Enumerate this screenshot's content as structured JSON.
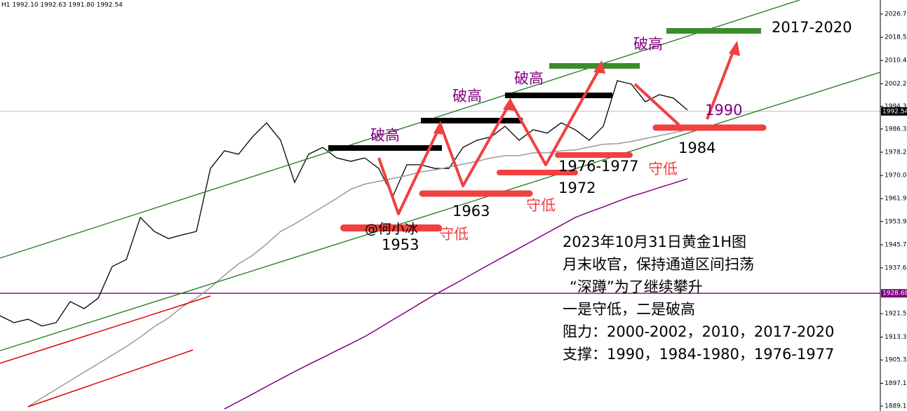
{
  "chart_data": {
    "type": "line",
    "header": "H1  1992.10 1992.63 1991.80 1992.54",
    "categories": [
      null,
      null,
      null,
      null,
      null,
      null,
      null,
      null,
      null,
      null,
      null,
      null,
      null,
      null,
      null,
      null,
      null,
      null,
      null,
      null,
      null,
      null,
      null,
      null,
      null,
      null,
      null,
      null,
      null,
      null,
      null,
      null,
      null,
      null,
      null,
      null,
      null,
      null,
      null,
      null,
      null,
      null,
      null,
      null,
      null,
      null,
      null,
      null,
      null,
      null
    ],
    "series": [
      {
        "color": "#000000",
        "values": [
          1920.8,
          1918.4,
          1919.6,
          1917.2,
          1918.4,
          1925.8,
          1923.3,
          1927.0,
          1938.1,
          1940.5,
          1955.3,
          1950.4,
          1947.9,
          1949.2,
          1950.4,
          1972.5,
          1978.7,
          1977.5,
          1983.6,
          1988.5,
          1982.4,
          1967.6,
          1977.5,
          1979.9,
          1976.2,
          1975.0,
          1976.2,
          1972.5,
          1962.7,
          1973.8,
          1973.8,
          1972.5,
          1972.5,
          1979.9,
          1982.4,
          1983.6,
          1987.3,
          1982.4,
          1986.1,
          1984.9,
          1988.5,
          1986.1,
          1982.4,
          1987.3,
          2003.3,
          2002.1,
          1995.9,
          1998.4,
          1997.2,
          1993.0
        ]
      },
      {
        "color": "#999999",
        "values": [
          null,
          null,
          1888.9,
          1892,
          1895,
          1898,
          1901,
          1904,
          1907,
          1910,
          1913.3,
          1917,
          1920,
          1924,
          1927,
          1930.7,
          1935,
          1939,
          1942,
          1946,
          1950.4,
          1953,
          1956,
          1959,
          1962,
          1965.2,
          1967,
          1968,
          1969,
          1970,
          1971.3,
          1972,
          1973,
          1974,
          1975,
          1976.2,
          1977,
          1977,
          1978,
          1978,
          1978.7,
          1979,
          1980,
          1981,
          1981.2,
          1982,
          1983,
          1984,
          1985,
          1986.1
        ]
      },
      {
        "color": "#800080",
        "values": [
          null,
          null,
          null,
          null,
          null,
          null,
          null,
          null,
          null,
          null,
          null,
          null,
          null,
          null,
          null,
          null,
          1888.1,
          1890.7,
          1893.3,
          1896,
          1898.6,
          1901.2,
          1903.7,
          1906.1,
          1908.6,
          1911,
          1913.5,
          1916.4,
          1919.4,
          1922.3,
          1925.3,
          1928.2,
          1930.9,
          1933.6,
          1936.4,
          1939.1,
          1941.8,
          1944.5,
          1947.2,
          1949.9,
          1952.6,
          1955.3,
          1957.2,
          1959,
          1960.9,
          1962.7,
          1964.2,
          1965.8,
          1967.3,
          1968.9
        ]
      }
    ],
    "ylim": [
      1887.38,
      2031.62
    ],
    "yticks": [
      {
        "value": 2026.7,
        "label": "2026.70"
      },
      {
        "value": 2018.55,
        "label": "2018.55"
      },
      {
        "value": 2010.4,
        "label": "2010.40"
      },
      {
        "value": 2002.25,
        "label": "2002.25"
      },
      {
        "value": 1994.3,
        "label": "1994.30"
      },
      {
        "value": 1986.35,
        "label": "1986.35"
      },
      {
        "value": 1978.2,
        "label": "1978.20"
      },
      {
        "value": 1970.05,
        "label": "1970.05"
      },
      {
        "value": 1961.9,
        "label": "1961.90"
      },
      {
        "value": 1953.9,
        "label": "1953.90"
      },
      {
        "value": 1945.7,
        "label": "1945.70"
      },
      {
        "value": 1937.6,
        "label": "1937.60"
      },
      {
        "value": 1921.55,
        "label": "1921.55"
      },
      {
        "value": 1913.3,
        "label": "1913.30"
      },
      {
        "value": 1905.3,
        "label": "1905.30"
      },
      {
        "value": 1897.1,
        "label": "1897.10"
      },
      {
        "value": 1889.1,
        "label": "1889.10"
      }
    ],
    "bid": 1992.54,
    "price_line": 1928.68,
    "annotations": [
      "破高",
      "破高",
      "破高",
      "破高",
      "守低",
      "守低",
      "守低",
      "1953",
      "1963",
      "1972",
      "1976-1977",
      "1984",
      "1990",
      "2017-2020",
      "@何小冰"
    ],
    "notes": [
      "2023年10月31日黄金1H图",
      "月末收官，保持通道区间扫荡",
      "“深蹲”为了继续攀升",
      "一是守低，二是破高",
      "阻力：2000-2002，2010，2017-2020",
      "支撑：1990，1984-1980，1976-1977"
    ]
  }
}
